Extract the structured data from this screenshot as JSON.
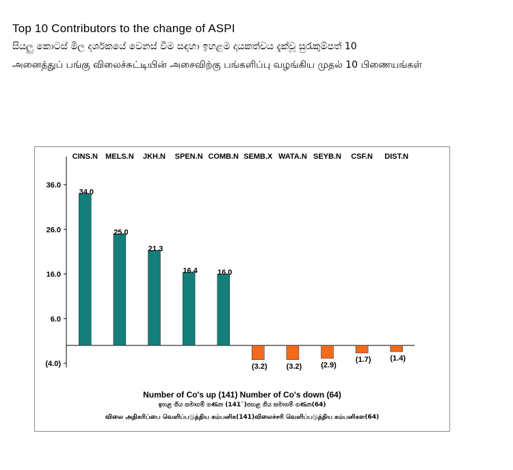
{
  "header": {
    "title": "Top 10 Contributors to the change of ASPI",
    "subtitle_sinhala": "සියලු කොටස් මිල දර්ශකයේ වෙනස් වීම සඳහා ඉහළම දායකත්වය දැක්වූ සුරැකුම්පත් 10",
    "subtitle_tamil": "அனைத்துப் பங்கு விலைச்சுட்டியின் அசைவிற்கு பங்களிப்பு வழங்கிய முதல் 10 பிணையங்கள்"
  },
  "chart_data": {
    "type": "bar",
    "categories": [
      "CINS.N",
      "MELS.N",
      "JKH.N",
      "SPEN.N",
      "COMB.N",
      "SEMB.X",
      "WATA.N",
      "SEYB.N",
      "CSF.N",
      "DIST.N"
    ],
    "values": [
      34.0,
      25.0,
      21.3,
      16.4,
      16.0,
      -3.2,
      -3.2,
      -2.9,
      -1.7,
      -1.4
    ],
    "value_labels": [
      "34.0",
      "25.0",
      "21.3",
      "16.4",
      "16.0",
      "(3.2)",
      "(3.2)",
      "(2.9)",
      "(1.7)",
      "(1.4)"
    ],
    "y_ticks": [
      36.0,
      26.0,
      16.0,
      6.0,
      -4.0
    ],
    "y_tick_labels": [
      "36.0",
      "26.0",
      "16.0",
      "6.0",
      "(4.0)"
    ],
    "ylim": [
      -4.0,
      36.0
    ],
    "colors": {
      "positive": "#147f7a",
      "negative": "#f26a1b"
    },
    "title": "",
    "xlabel": "",
    "ylabel": "",
    "grid": false
  },
  "footer": {
    "line1": "Number of Co's up (141) Number of Co's down  (64)",
    "line2": "ඉහළ ගිය සමාගම් ගණන (141`)පහළ ගිය සමාගම් ගණන(64)",
    "line3": "விலை அதிகரிப்பை வெளிப்படுத்திய கம்பனிக(141)விலைச்சரி வெளிப்படுத்திய கம்பனிகள(64)"
  }
}
